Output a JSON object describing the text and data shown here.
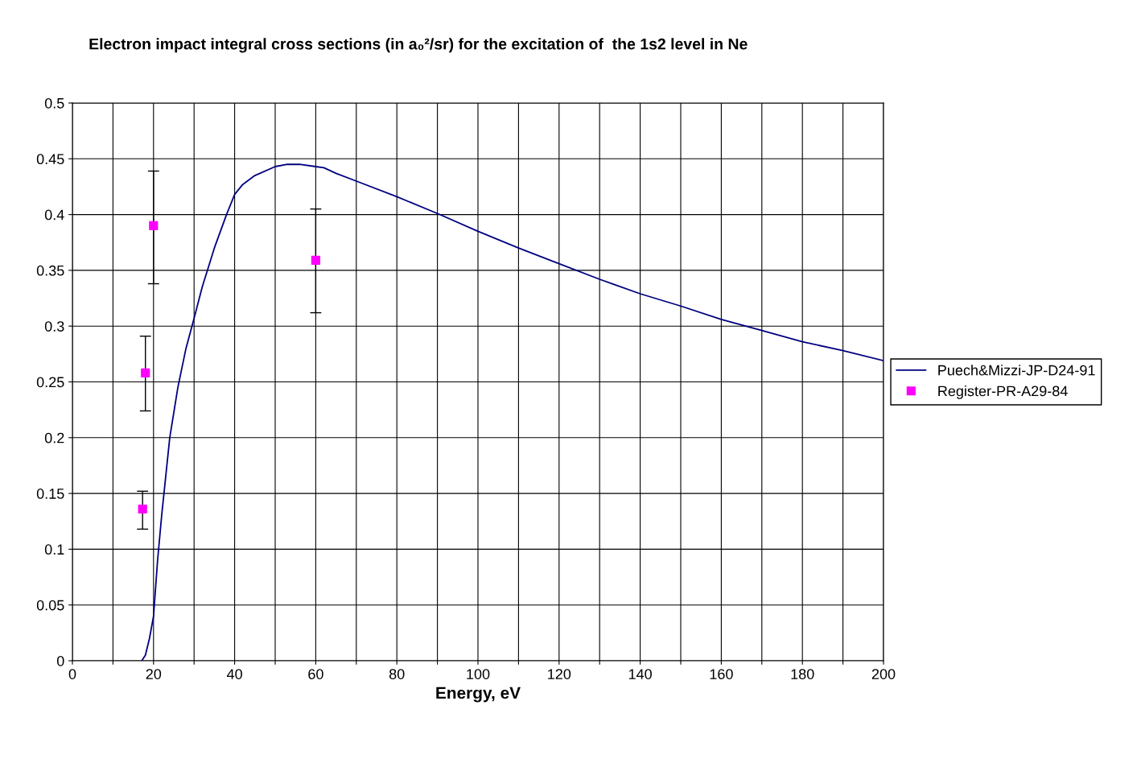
{
  "chart_data": {
    "type": "line",
    "title": "Electron impact integral cross sections (in a₀²/sr) for the excitation of  the 1s2 level in Ne",
    "xlabel": "Energy, eV",
    "xlim": [
      0,
      200
    ],
    "xticks": [
      0,
      {
        "value": 10,
        "label": null
      },
      20,
      {
        "value": 30,
        "label": null
      },
      40,
      {
        "value": 50,
        "label": null
      },
      60,
      {
        "value": 70,
        "label": null
      },
      80,
      {
        "value": 90,
        "label": null
      },
      100,
      {
        "value": 110,
        "label": null
      },
      120,
      {
        "value": 130,
        "label": null
      },
      140,
      {
        "value": 150,
        "label": null
      },
      160,
      {
        "value": 170,
        "label": null
      },
      180,
      {
        "value": 190,
        "label": null
      },
      200
    ],
    "ylim": [
      0,
      0.5
    ],
    "yticks": [
      0,
      0.05,
      0.1,
      0.15,
      0.2,
      0.25,
      0.3,
      0.35,
      0.4,
      0.45,
      0.5
    ],
    "grid": true,
    "legend": "right",
    "series": [
      {
        "name": "Puech&Mizzi-JP-D24-91",
        "color": "#000080",
        "marker": "none",
        "line_style": "solid",
        "x": [
          17.1,
          18,
          19,
          20,
          21,
          22,
          23,
          24,
          26,
          28,
          30,
          32,
          35,
          38,
          40,
          42,
          45,
          50,
          53,
          56,
          60,
          62,
          65,
          70,
          80,
          90,
          100,
          110,
          120,
          130,
          140,
          150,
          160,
          170,
          180,
          190,
          200
        ],
        "values": [
          0,
          0.005,
          0.02,
          0.04,
          0.09,
          0.13,
          0.165,
          0.2,
          0.245,
          0.28,
          0.307,
          0.335,
          0.37,
          0.4,
          0.418,
          0.427,
          0.435,
          0.443,
          0.445,
          0.445,
          0.443,
          0.442,
          0.437,
          0.43,
          0.416,
          0.401,
          0.385,
          0.37,
          0.356,
          0.342,
          0.329,
          0.318,
          0.306,
          0.296,
          0.286,
          0.278,
          0.269
        ]
      },
      {
        "name": "Register-PR-A29-84",
        "type": "scatter",
        "color": "#ff00ff",
        "marker": "square",
        "x": [
          17.3,
          18,
          20,
          60
        ],
        "values": [
          0.136,
          0.258,
          0.39,
          0.359
        ],
        "errors": [
          [
            0.118,
            0.152
          ],
          [
            0.224,
            0.291
          ],
          [
            0.338,
            0.439
          ],
          [
            0.312,
            0.405
          ]
        ]
      }
    ]
  }
}
